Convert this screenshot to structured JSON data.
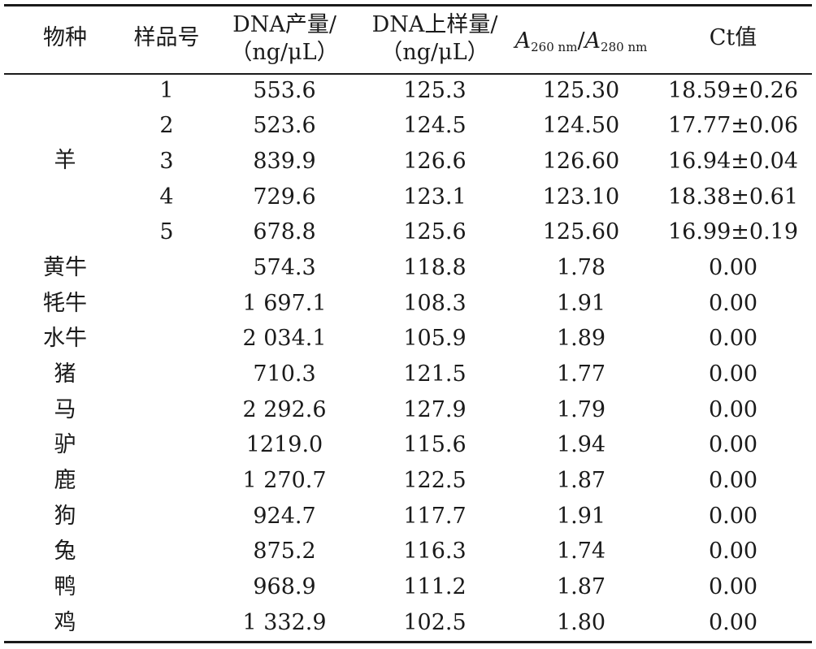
{
  "headers": {
    "species": "物种",
    "sample_no": "样品号",
    "dna_yield": [
      "DNA产量/",
      "（ng/μL）"
    ],
    "dna_load": [
      "DNA上样量/",
      "（ng/μL）"
    ],
    "ratio": {
      "a1": "A",
      "s1": "260 nm",
      "slash": "/",
      "a2": "A",
      "s2": "280 nm"
    },
    "ct": "Ct值"
  },
  "group": {
    "species": "羊"
  },
  "rows": [
    {
      "species": "",
      "sample": "1",
      "yield": "553.6",
      "load": "125.3",
      "ratio": "125.30",
      "ct": "18.59±0.26"
    },
    {
      "species": "",
      "sample": "2",
      "yield": "523.6",
      "load": "124.5",
      "ratio": "124.50",
      "ct": "17.77±0.06"
    },
    {
      "species": "",
      "sample": "3",
      "yield": "839.9",
      "load": "126.6",
      "ratio": "126.60",
      "ct": "16.94±0.04"
    },
    {
      "species": "",
      "sample": "4",
      "yield": "729.6",
      "load": "123.1",
      "ratio": "123.10",
      "ct": "18.38±0.61"
    },
    {
      "species": "",
      "sample": "5",
      "yield": "678.8",
      "load": "125.6",
      "ratio": "125.60",
      "ct": "16.99±0.19"
    },
    {
      "species": "黄牛",
      "sample": "",
      "yield": "574.3",
      "load": "118.8",
      "ratio": "1.78",
      "ct": "0.00"
    },
    {
      "species": "牦牛",
      "sample": "",
      "yield": "1 697.1",
      "load": "108.3",
      "ratio": "1.91",
      "ct": "0.00"
    },
    {
      "species": "水牛",
      "sample": "",
      "yield": "2 034.1",
      "load": "105.9",
      "ratio": "1.89",
      "ct": "0.00"
    },
    {
      "species": "猪",
      "sample": "",
      "yield": "710.3",
      "load": "121.5",
      "ratio": "1.77",
      "ct": "0.00"
    },
    {
      "species": "马",
      "sample": "",
      "yield": "2 292.6",
      "load": "127.9",
      "ratio": "1.79",
      "ct": "0.00"
    },
    {
      "species": "驴",
      "sample": "",
      "yield": "1219.0",
      "load": "115.6",
      "ratio": "1.94",
      "ct": "0.00"
    },
    {
      "species": "鹿",
      "sample": "",
      "yield": "1 270.7",
      "load": "122.5",
      "ratio": "1.87",
      "ct": "0.00"
    },
    {
      "species": "狗",
      "sample": "",
      "yield": "924.7",
      "load": "117.7",
      "ratio": "1.91",
      "ct": "0.00"
    },
    {
      "species": "兔",
      "sample": "",
      "yield": "875.2",
      "load": "116.3",
      "ratio": "1.74",
      "ct": "0.00"
    },
    {
      "species": "鸭",
      "sample": "",
      "yield": "968.9",
      "load": "111.2",
      "ratio": "1.87",
      "ct": "0.00"
    },
    {
      "species": "鸡",
      "sample": "",
      "yield": "1 332.9",
      "load": "102.5",
      "ratio": "1.80",
      "ct": "0.00"
    }
  ]
}
